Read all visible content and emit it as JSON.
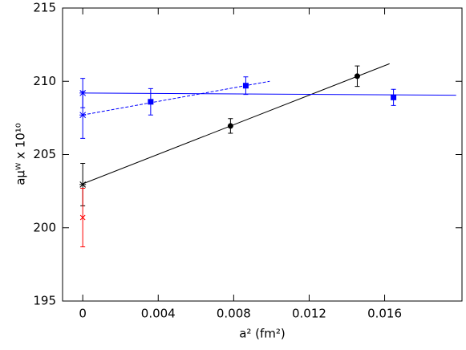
{
  "chart_data": {
    "type": "scatter",
    "x_label": "a² (fm²)",
    "y_label": "aμᵂ x 10¹⁰",
    "xlim": [
      -0.00107,
      0.0201
    ],
    "ylim": [
      195,
      215
    ],
    "xticks": [
      0,
      0.004,
      0.008,
      0.012,
      0.016
    ],
    "yticks": [
      195,
      200,
      205,
      210,
      215
    ],
    "series": [
      {
        "color": "#000000",
        "marker": "circle",
        "x": [
          0.00783,
          0.01455
        ],
        "values": [
          206.95,
          210.35
        ],
        "errors": [
          0.5,
          0.7
        ]
      },
      {
        "color": "#000000",
        "marker": "asterisk",
        "x": [
          0
        ],
        "values": [
          202.95
        ],
        "errors": [
          1.45
        ]
      },
      {
        "color": "#ff0000",
        "marker": "x",
        "x": [
          0
        ],
        "values": [
          200.7
        ],
        "errors": [
          2.0
        ]
      },
      {
        "color": "#0000ff",
        "marker": "square",
        "x": [
          0.0036,
          0.00864,
          0.01647
        ],
        "values": [
          208.6,
          209.7,
          208.9
        ],
        "errors": [
          0.9,
          0.6,
          0.55
        ]
      },
      {
        "color": "#0000ff",
        "marker": "asterisk",
        "x": [
          0,
          0
        ],
        "values": [
          209.2,
          207.7
        ],
        "errors": [
          1.0,
          1.6
        ]
      }
    ],
    "fits": [
      {
        "color": "#000000",
        "dashed": false,
        "x": [
          0,
          0.01626
        ],
        "values": [
          203,
          211.2
        ]
      },
      {
        "color": "#0000ff",
        "dashed": false,
        "x": [
          0,
          0.01979
        ],
        "values": [
          209.2,
          209.05
        ]
      },
      {
        "color": "#0000ff",
        "dashed": true,
        "x": [
          0,
          0.00991
        ],
        "values": [
          207.7,
          210.0
        ]
      }
    ]
  }
}
